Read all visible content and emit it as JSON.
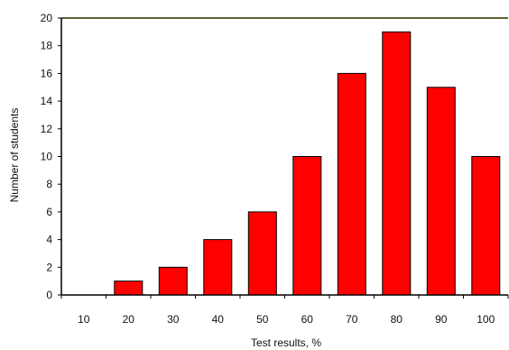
{
  "chart_data": {
    "type": "bar",
    "title": "",
    "xlabel": "Test results, %",
    "ylabel": "Number of students",
    "categories": [
      "10",
      "20",
      "30",
      "40",
      "50",
      "60",
      "70",
      "80",
      "90",
      "100"
    ],
    "values": [
      0,
      1,
      2,
      4,
      6,
      10,
      16,
      19,
      15,
      10
    ],
    "y_ticks": [
      "0",
      "2",
      "4",
      "6",
      "8",
      "10",
      "12",
      "14",
      "16",
      "18",
      "20"
    ],
    "ylim": [
      0,
      20
    ],
    "grid": false,
    "legend": "none",
    "colors": {
      "bar_fill": "#ff0000",
      "bar_stroke": "#000000",
      "axis": "#000000",
      "top_border": "#5f5f2f"
    }
  }
}
